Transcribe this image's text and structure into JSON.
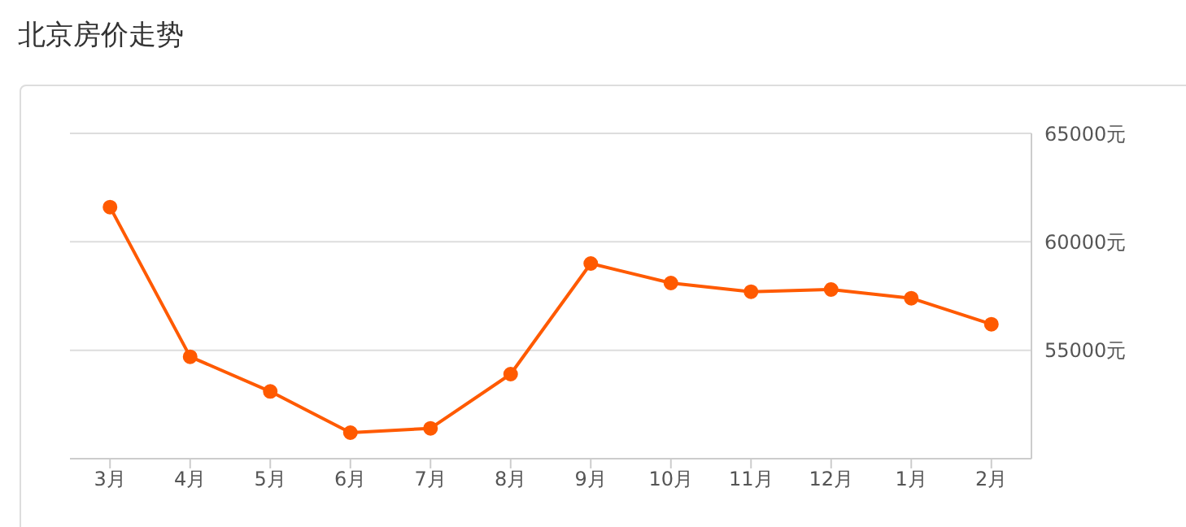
{
  "chart_data": {
    "type": "line",
    "title": "北京房价走势",
    "categories": [
      "3月",
      "4月",
      "5月",
      "6月",
      "7月",
      "8月",
      "9月",
      "10月",
      "11月",
      "12月",
      "1月",
      "2月"
    ],
    "values": [
      61600,
      54700,
      53100,
      51200,
      51400,
      53900,
      59000,
      58100,
      57700,
      57800,
      57400,
      56200
    ],
    "color": "#ff5a00",
    "ylim": [
      50000,
      65000
    ],
    "yticks": [
      {
        "value": 55000,
        "label": "55000元"
      },
      {
        "value": 60000,
        "label": "60000元"
      },
      {
        "value": 65000,
        "label": "65000元"
      }
    ],
    "grid": "y",
    "legend": false,
    "marker": "circle",
    "line_style": "solid"
  }
}
